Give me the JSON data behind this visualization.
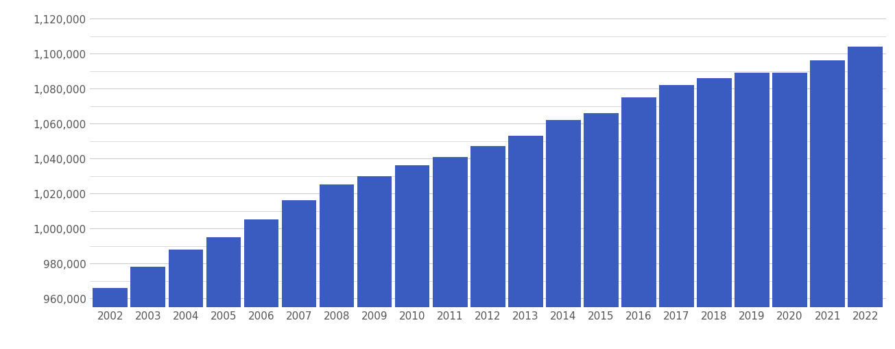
{
  "years": [
    2002,
    2003,
    2004,
    2005,
    2006,
    2007,
    2008,
    2009,
    2010,
    2011,
    2012,
    2013,
    2014,
    2015,
    2016,
    2017,
    2018,
    2019,
    2020,
    2021,
    2022
  ],
  "values": [
    966000,
    978000,
    988000,
    995000,
    1005000,
    1016000,
    1025000,
    1030000,
    1036000,
    1041000,
    1047000,
    1053000,
    1062000,
    1066000,
    1075000,
    1082000,
    1086000,
    1089000,
    1089000,
    1096000,
    1104000
  ],
  "bar_color": "#3a5bbf",
  "background_color": "#ffffff",
  "grid_color": "#cccccc",
  "ylim_min": 955000,
  "ylim_max": 1125000,
  "ytick_values": [
    960000,
    980000,
    1000000,
    1020000,
    1040000,
    1060000,
    1080000,
    1100000,
    1120000
  ],
  "tick_label_color": "#555555",
  "tick_label_fontsize": 11,
  "bar_width": 0.92
}
